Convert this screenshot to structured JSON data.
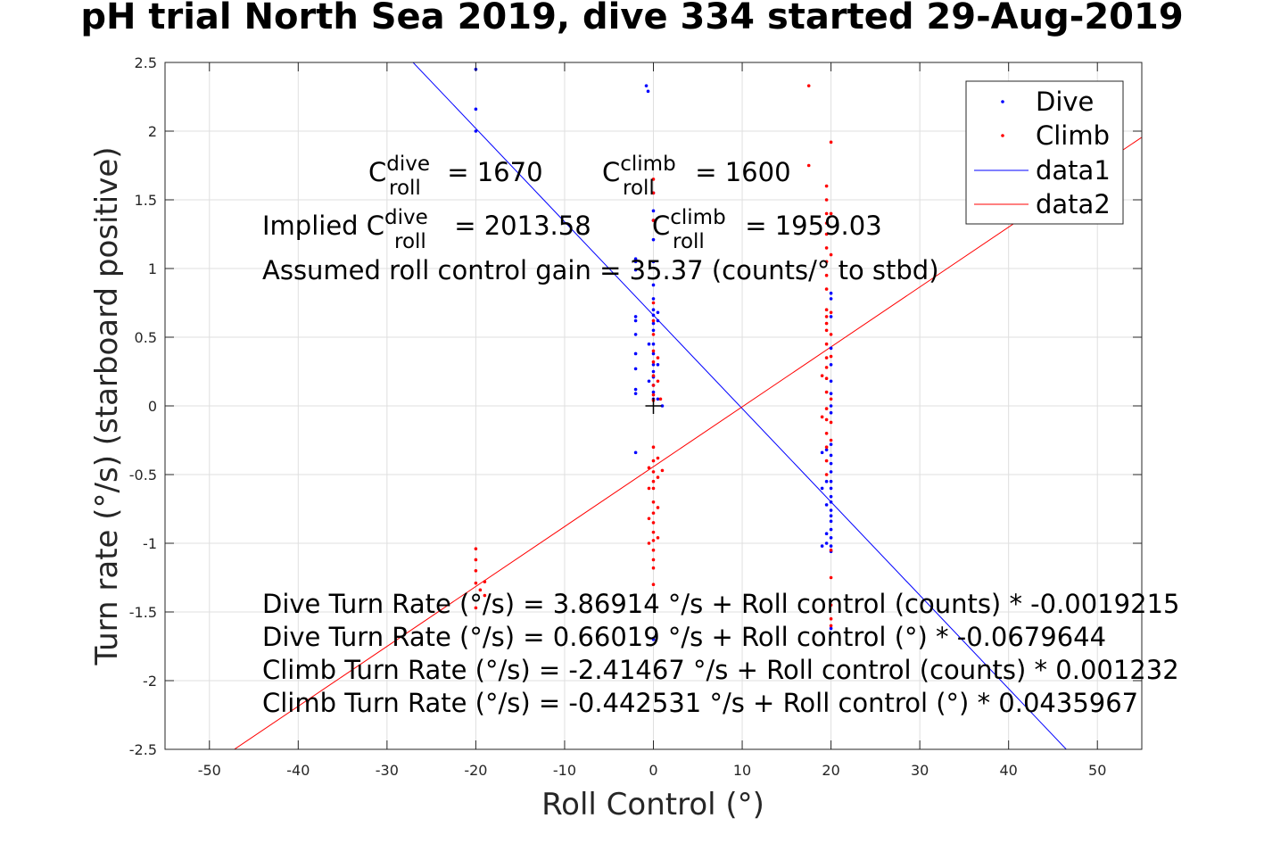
{
  "chart_data": {
    "type": "scatter",
    "title": "pH trial North Sea 2019, dive 334 started 29-Aug-2019",
    "xlabel": "Roll Control (°)",
    "ylabel": "Turn rate (°/s) (starboard positive)",
    "xlim": [
      -55,
      55
    ],
    "ylim": [
      -2.5,
      2.5
    ],
    "xticks": [
      "-50",
      "-40",
      "-30",
      "-20",
      "-10",
      "0",
      "10",
      "20",
      "30",
      "40",
      "50"
    ],
    "xtick_values": [
      -50,
      -40,
      -30,
      -20,
      -10,
      0,
      10,
      20,
      30,
      40,
      50
    ],
    "yticks": [
      "-2.5",
      "-2",
      "-1.5",
      "-1",
      "-0.5",
      "0",
      "0.5",
      "1",
      "1.5",
      "2",
      "2.5"
    ],
    "ytick_values": [
      -2.5,
      -2,
      -1.5,
      -1,
      -0.5,
      0,
      0.5,
      1,
      1.5,
      2,
      2.5
    ],
    "grid": true,
    "legend": {
      "location": "top-right",
      "entries": [
        "Dive",
        "Climb",
        "data1",
        "data2"
      ]
    },
    "series": [
      {
        "name": "Dive",
        "kind": "points",
        "color": "#0000ff",
        "points": [
          [
            -20,
            2.45
          ],
          [
            -20,
            2.16
          ],
          [
            -20,
            2.0
          ],
          [
            -0.8,
            2.33
          ],
          [
            -0.6,
            2.29
          ],
          [
            -2,
            1.07
          ],
          [
            -2,
            1.05
          ],
          [
            -2,
            0.99
          ],
          [
            -2,
            0.65
          ],
          [
            -2,
            0.62
          ],
          [
            -2,
            0.52
          ],
          [
            -2,
            0.38
          ],
          [
            -2,
            0.27
          ],
          [
            -2,
            0.12
          ],
          [
            -2,
            0.09
          ],
          [
            -2,
            -0.34
          ],
          [
            0,
            1.55
          ],
          [
            0,
            1.42
          ],
          [
            0,
            1.35
          ],
          [
            0,
            1.21
          ],
          [
            0,
            1.05
          ],
          [
            0,
            0.88
          ],
          [
            0,
            0.78
          ],
          [
            0,
            0.7
          ],
          [
            0,
            0.66
          ],
          [
            0,
            0.6
          ],
          [
            0,
            0.55
          ],
          [
            0,
            0.45
          ],
          [
            0,
            0.38
          ],
          [
            0,
            0.3
          ],
          [
            0,
            0.25
          ],
          [
            0,
            0.21
          ],
          [
            0,
            0.15
          ],
          [
            0,
            0.1
          ],
          [
            0,
            0.05
          ],
          [
            0.5,
            0.68
          ],
          [
            0.5,
            0.62
          ],
          [
            0.5,
            0.3
          ],
          [
            0.5,
            0.05
          ],
          [
            1.0,
            0.0
          ],
          [
            -0.5,
            0.45
          ],
          [
            -0.5,
            0.18
          ],
          [
            0,
            -1.7
          ],
          [
            20,
            0.82
          ],
          [
            20,
            0.78
          ],
          [
            20,
            0.65
          ],
          [
            20,
            0.42
          ],
          [
            20,
            0.3
          ],
          [
            20,
            0.18
          ],
          [
            20,
            0.09
          ],
          [
            20,
            0.0
          ],
          [
            20,
            -0.05
          ],
          [
            20,
            -0.28
          ],
          [
            20,
            -0.36
          ],
          [
            20,
            -0.42
          ],
          [
            20,
            -0.48
          ],
          [
            20,
            -0.55
          ],
          [
            20,
            -0.6
          ],
          [
            20,
            -0.66
          ],
          [
            20,
            -0.7
          ],
          [
            20,
            -0.76
          ],
          [
            20,
            -0.8
          ],
          [
            20,
            -0.84
          ],
          [
            20,
            -0.9
          ],
          [
            20,
            -0.96
          ],
          [
            20,
            -1.02
          ],
          [
            20,
            -1.06
          ],
          [
            19.5,
            -0.32
          ],
          [
            19.5,
            -0.55
          ],
          [
            19.5,
            -0.72
          ],
          [
            19.5,
            -0.93
          ],
          [
            19.5,
            -1.0
          ],
          [
            19,
            -0.34
          ],
          [
            19,
            -0.6
          ],
          [
            19,
            -1.02
          ],
          [
            20,
            -1.62
          ]
        ]
      },
      {
        "name": "Climb",
        "kind": "points",
        "color": "#ff0000",
        "points": [
          [
            17.5,
            2.33
          ],
          [
            17.5,
            1.75
          ],
          [
            20,
            1.92
          ],
          [
            19.5,
            1.6
          ],
          [
            19.5,
            1.5
          ],
          [
            19.5,
            1.4
          ],
          [
            19.5,
            1.33
          ],
          [
            19.5,
            1.25
          ],
          [
            19.5,
            1.15
          ],
          [
            19.5,
            1.05
          ],
          [
            19.5,
            0.95
          ],
          [
            19.5,
            0.85
          ],
          [
            19.5,
            0.7
          ],
          [
            19.5,
            0.65
          ],
          [
            19.5,
            0.6
          ],
          [
            19.5,
            0.55
          ],
          [
            19.5,
            0.45
          ],
          [
            19.5,
            0.35
          ],
          [
            19.5,
            0.28
          ],
          [
            19.5,
            0.2
          ],
          [
            19.5,
            0.1
          ],
          [
            19.5,
            -0.02
          ],
          [
            19.5,
            -0.1
          ],
          [
            19.5,
            -0.2
          ],
          [
            19.5,
            -0.3
          ],
          [
            19.5,
            -0.4
          ],
          [
            19.5,
            -0.5
          ],
          [
            20,
            1.4
          ],
          [
            20,
            1.1
          ],
          [
            20,
            0.68
          ],
          [
            20,
            0.52
          ],
          [
            20,
            0.36
          ],
          [
            20,
            0.05
          ],
          [
            20,
            -0.12
          ],
          [
            20,
            -0.25
          ],
          [
            19,
            0.22
          ],
          [
            19,
            -0.08
          ],
          [
            20,
            -1.05
          ],
          [
            20,
            -1.25
          ],
          [
            20,
            -1.45
          ],
          [
            20,
            -1.55
          ],
          [
            20,
            -1.6
          ],
          [
            0,
            1.65
          ],
          [
            0,
            1.55
          ],
          [
            0,
            1.35
          ],
          [
            0,
            0.75
          ],
          [
            0,
            0.62
          ],
          [
            0,
            0.52
          ],
          [
            0,
            0.4
          ],
          [
            0,
            0.32
          ],
          [
            0,
            0.22
          ],
          [
            0,
            0.15
          ],
          [
            0,
            0.08
          ],
          [
            0,
            0.04
          ],
          [
            0,
            -0.3
          ],
          [
            0,
            -0.4
          ],
          [
            0,
            -0.48
          ],
          [
            0,
            -0.55
          ],
          [
            0,
            -0.6
          ],
          [
            0,
            -0.7
          ],
          [
            0,
            -0.78
          ],
          [
            0,
            -0.85
          ],
          [
            0,
            -0.92
          ],
          [
            0,
            -0.98
          ],
          [
            0,
            -1.05
          ],
          [
            0,
            -1.12
          ],
          [
            0,
            -1.18
          ],
          [
            -0.5,
            -0.45
          ],
          [
            -0.5,
            -0.6
          ],
          [
            -0.5,
            -0.82
          ],
          [
            -0.5,
            -1.0
          ],
          [
            0.5,
            -0.38
          ],
          [
            0.5,
            -0.52
          ],
          [
            0.5,
            -0.74
          ],
          [
            0.5,
            -0.96
          ],
          [
            0.5,
            0.35
          ],
          [
            0.5,
            0.18
          ],
          [
            0.8,
            0.05
          ],
          [
            1.0,
            -0.47
          ],
          [
            0,
            -1.3
          ],
          [
            -20,
            -1.04
          ],
          [
            -20,
            -1.12
          ],
          [
            -20,
            -1.2
          ],
          [
            -20,
            -1.29
          ],
          [
            -20,
            -1.47
          ],
          [
            -19.5,
            -1.34
          ],
          [
            -19,
            -1.38
          ],
          [
            -19,
            -1.28
          ]
        ]
      },
      {
        "name": "data1",
        "kind": "line",
        "color": "#0000ff",
        "intercept": 0.66019,
        "slope": -0.0679644
      },
      {
        "name": "data2",
        "kind": "line",
        "color": "#ff0000",
        "intercept": -0.442531,
        "slope": 0.0435967
      }
    ],
    "marker": {
      "kind": "crosshair",
      "x": 0,
      "y": 0,
      "color": "#000000"
    },
    "annotations": {
      "c_roll_dive": {
        "base": "C",
        "sub": "roll",
        "sup": "dive",
        "value": " = 1670"
      },
      "c_roll_climb": {
        "base": "C",
        "sub": "roll",
        "sup": "climb",
        "value": " = 1600"
      },
      "implied_dive": {
        "prefix": "Implied C",
        "sub": "roll",
        "sup": "dive",
        "value": " = 2013.58"
      },
      "implied_climb": {
        "base": "C",
        "sub": "roll",
        "sup": "climb",
        "value": " = 1959.03"
      },
      "gain": "Assumed roll control gain = 35.37 (counts/° to stbd)",
      "eq1": "Dive Turn Rate (°/s) = 3.86914 °/s + Roll control (counts) * -0.0019215",
      "eq2": "Dive Turn Rate (°/s) = 0.66019 °/s + Roll control (°) * -0.0679644",
      "eq3": "Climb Turn Rate (°/s) = -2.41467 °/s + Roll control (counts) * 0.001232",
      "eq4": "Climb Turn Rate (°/s) = -0.442531 °/s + Roll control (°) * 0.0435967"
    }
  }
}
